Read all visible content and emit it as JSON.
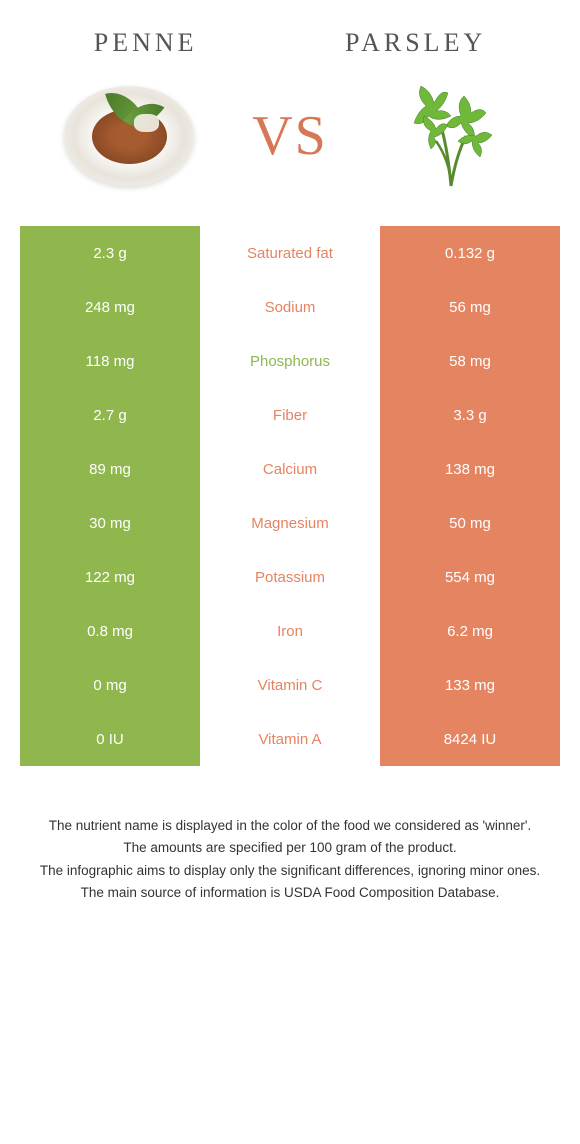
{
  "header": {
    "left_title": "Penne",
    "right_title": "Parsley",
    "vs_label": "VS"
  },
  "colors": {
    "green": "#8fb74e",
    "orange": "#e58461",
    "vs_color": "#d67856"
  },
  "rows": [
    {
      "left": "2.3 g",
      "label": "Saturated fat",
      "right": "0.132 g",
      "winner": "right"
    },
    {
      "left": "248 mg",
      "label": "Sodium",
      "right": "56 mg",
      "winner": "right"
    },
    {
      "left": "118 mg",
      "label": "Phosphorus",
      "right": "58 mg",
      "winner": "left"
    },
    {
      "left": "2.7 g",
      "label": "Fiber",
      "right": "3.3 g",
      "winner": "right"
    },
    {
      "left": "89 mg",
      "label": "Calcium",
      "right": "138 mg",
      "winner": "right"
    },
    {
      "left": "30 mg",
      "label": "Magnesium",
      "right": "50 mg",
      "winner": "right"
    },
    {
      "left": "122 mg",
      "label": "Potassium",
      "right": "554 mg",
      "winner": "right"
    },
    {
      "left": "0.8 mg",
      "label": "Iron",
      "right": "6.2 mg",
      "winner": "right"
    },
    {
      "left": "0 mg",
      "label": "Vitamin C",
      "right": "133 mg",
      "winner": "right"
    },
    {
      "left": "0 IU",
      "label": "Vitamin A",
      "right": "8424 IU",
      "winner": "right"
    }
  ],
  "footer": {
    "line1": "The nutrient name is displayed in the color of the food we considered as 'winner'.",
    "line2": "The amounts are specified per 100 gram of the product.",
    "line3": "The infographic aims to display only the significant differences, ignoring minor ones.",
    "line4": "The main source of information is USDA Food Composition Database."
  }
}
